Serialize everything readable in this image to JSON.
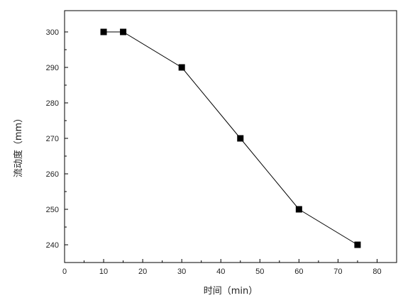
{
  "chart_data": {
    "type": "line",
    "title": "",
    "xlabel": "时间（min）",
    "ylabel": "流动度（mm）",
    "xlim": [
      0,
      85
    ],
    "ylim": [
      235,
      306
    ],
    "x_ticks": [
      0,
      10,
      20,
      30,
      40,
      50,
      60,
      70,
      80
    ],
    "y_ticks": [
      240,
      250,
      260,
      270,
      280,
      290,
      300
    ],
    "grid": false,
    "legend": "none",
    "series": [
      {
        "x": [
          10,
          15,
          30,
          45,
          60,
          75
        ],
        "y": [
          300,
          300,
          290,
          270,
          250,
          240
        ],
        "marker": "square",
        "color": "#000000"
      }
    ]
  }
}
